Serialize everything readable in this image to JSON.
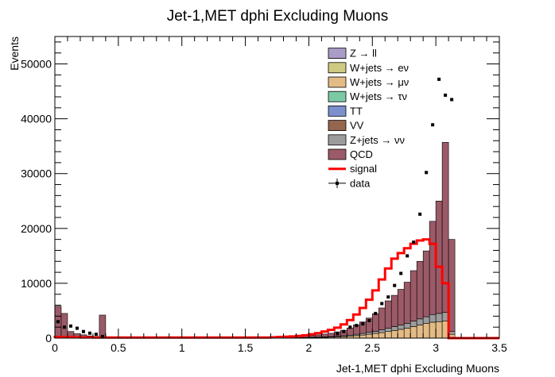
{
  "chart_data": {
    "type": "stacked-histogram",
    "title": "Jet-1,MET dphi Excluding Muons",
    "xlabel": "Jet-1,MET dphi Excluding Muons",
    "ylabel": "Events",
    "xlim": [
      0,
      3.5
    ],
    "ylim": [
      0,
      55000
    ],
    "grid": false,
    "legend_position": "top-right",
    "x_ticks": [
      "0",
      "0.5",
      "1",
      "1.5",
      "2",
      "2.5",
      "3",
      "3.5"
    ],
    "y_ticks": [
      "0",
      "10000",
      "20000",
      "30000",
      "40000",
      "50000"
    ],
    "bin_width": 0.05,
    "bins_lo": [
      0.0,
      0.05,
      0.1,
      0.15,
      0.2,
      0.25,
      0.3,
      0.35,
      0.4,
      0.45,
      0.5,
      0.55,
      0.6,
      0.65,
      0.7,
      0.75,
      0.8,
      0.85,
      0.9,
      0.95,
      1.0,
      1.05,
      1.1,
      1.15,
      1.2,
      1.25,
      1.3,
      1.35,
      1.4,
      1.45,
      1.5,
      1.55,
      1.6,
      1.65,
      1.7,
      1.75,
      1.8,
      1.85,
      1.9,
      1.95,
      2.0,
      2.05,
      2.1,
      2.15,
      2.2,
      2.25,
      2.3,
      2.35,
      2.4,
      2.45,
      2.5,
      2.55,
      2.6,
      2.65,
      2.7,
      2.75,
      2.8,
      2.85,
      2.9,
      2.95,
      3.0,
      3.05,
      3.1
    ],
    "stack": [
      {
        "name": "Z → ll",
        "color": "#a99cc6",
        "values": [
          0,
          0,
          0,
          0,
          0,
          0,
          0,
          0,
          0,
          0,
          0,
          0,
          0,
          0,
          0,
          0,
          0,
          0,
          0,
          0,
          0,
          0,
          0,
          0,
          0,
          0,
          0,
          0,
          0,
          0,
          0,
          0,
          0,
          0,
          0,
          0,
          0,
          0,
          0,
          0,
          0,
          0,
          0,
          0,
          0,
          0,
          0,
          0,
          0,
          0,
          0,
          0,
          0,
          0,
          0,
          0,
          0,
          0,
          0,
          0,
          0,
          0,
          0
        ]
      },
      {
        "name": "W+jets → eν",
        "color": "#cfca82",
        "values": [
          0,
          0,
          0,
          0,
          0,
          0,
          0,
          0,
          0,
          0,
          0,
          0,
          0,
          0,
          0,
          0,
          0,
          0,
          0,
          0,
          0,
          0,
          0,
          0,
          0,
          0,
          0,
          0,
          0,
          0,
          0,
          0,
          0,
          0,
          0,
          0,
          0,
          0,
          0,
          0,
          0,
          0,
          0,
          0,
          0,
          0,
          0,
          0,
          0,
          0,
          0,
          0,
          0,
          0,
          0,
          0,
          0,
          0,
          0,
          0,
          0,
          0,
          0
        ]
      },
      {
        "name": "W+jets → μν",
        "color": "#e3bb85",
        "values": [
          0,
          0,
          0,
          0,
          0,
          0,
          0,
          0,
          0,
          0,
          0,
          0,
          0,
          0,
          0,
          0,
          0,
          0,
          0,
          0,
          0,
          0,
          0,
          0,
          0,
          0,
          0,
          0,
          0,
          0,
          0,
          0,
          0,
          0,
          20,
          30,
          40,
          50,
          60,
          80,
          100,
          120,
          150,
          180,
          220,
          280,
          350,
          450,
          550,
          700,
          850,
          1000,
          1200,
          1400,
          1600,
          1800,
          2100,
          2400,
          2700,
          2900,
          3000,
          3100,
          700
        ]
      },
      {
        "name": "W+jets → τν",
        "color": "#7cc9a5",
        "values": [
          0,
          0,
          0,
          0,
          0,
          0,
          0,
          0,
          0,
          0,
          0,
          0,
          0,
          0,
          0,
          0,
          0,
          0,
          0,
          0,
          0,
          0,
          0,
          0,
          0,
          0,
          0,
          0,
          0,
          0,
          0,
          0,
          0,
          0,
          0,
          0,
          0,
          0,
          0,
          0,
          0,
          0,
          0,
          0,
          0,
          0,
          0,
          0,
          0,
          0,
          0,
          0,
          0,
          0,
          0,
          0,
          0,
          0,
          0,
          0,
          0,
          0,
          0
        ]
      },
      {
        "name": "TT",
        "color": "#7b90cd",
        "values": [
          0,
          0,
          0,
          0,
          0,
          0,
          0,
          0,
          0,
          0,
          0,
          0,
          0,
          0,
          0,
          0,
          0,
          0,
          0,
          0,
          0,
          0,
          0,
          0,
          0,
          0,
          0,
          0,
          0,
          0,
          0,
          0,
          0,
          0,
          0,
          0,
          0,
          0,
          0,
          0,
          0,
          0,
          0,
          0,
          0,
          0,
          0,
          0,
          0,
          0,
          0,
          0,
          0,
          0,
          0,
          0,
          0,
          0,
          0,
          0,
          0,
          0,
          0
        ]
      },
      {
        "name": "VV",
        "color": "#94664e",
        "values": [
          0,
          0,
          0,
          0,
          0,
          0,
          0,
          0,
          0,
          0,
          0,
          0,
          0,
          0,
          0,
          0,
          0,
          0,
          0,
          0,
          0,
          0,
          0,
          0,
          0,
          0,
          0,
          0,
          0,
          0,
          0,
          0,
          0,
          0,
          0,
          0,
          0,
          0,
          0,
          0,
          0,
          0,
          0,
          0,
          0,
          0,
          0,
          0,
          0,
          0,
          0,
          0,
          0,
          0,
          0,
          0,
          0,
          0,
          0,
          0,
          0,
          0,
          0
        ]
      },
      {
        "name": "Z+jets → νν",
        "color": "#9c9c9c",
        "values": [
          0,
          0,
          0,
          0,
          0,
          0,
          0,
          0,
          0,
          0,
          0,
          0,
          0,
          0,
          0,
          0,
          0,
          0,
          0,
          0,
          0,
          0,
          0,
          0,
          0,
          0,
          0,
          0,
          0,
          0,
          0,
          0,
          0,
          0,
          10,
          15,
          20,
          25,
          30,
          40,
          50,
          60,
          80,
          100,
          120,
          150,
          200,
          250,
          300,
          350,
          400,
          500,
          600,
          700,
          800,
          900,
          1000,
          1100,
          1200,
          1400,
          1500,
          1600,
          500
        ]
      },
      {
        "name": "QCD",
        "color": "#9b5a67",
        "values": [
          5800,
          4500,
          1200,
          800,
          600,
          400,
          300,
          4200,
          200,
          150,
          150,
          100,
          100,
          100,
          100,
          100,
          100,
          100,
          100,
          100,
          100,
          100,
          100,
          100,
          100,
          100,
          100,
          100,
          100,
          100,
          100,
          100,
          100,
          100,
          100,
          100,
          150,
          200,
          200,
          250,
          300,
          400,
          500,
          600,
          800,
          1000,
          1300,
          1700,
          2100,
          2600,
          3200,
          4000,
          5000,
          5700,
          6500,
          7500,
          9200,
          10500,
          12000,
          17000,
          20500,
          31000,
          16800
        ]
      }
    ],
    "signal": {
      "name": "signal",
      "color": "#ff0000",
      "values": [
        200,
        180,
        160,
        140,
        130,
        120,
        110,
        100,
        100,
        100,
        100,
        100,
        100,
        100,
        100,
        100,
        100,
        100,
        100,
        100,
        100,
        100,
        100,
        100,
        100,
        100,
        100,
        100,
        100,
        100,
        100,
        100,
        100,
        100,
        150,
        200,
        250,
        300,
        400,
        500,
        700,
        900,
        1200,
        1500,
        1900,
        2500,
        3300,
        4300,
        5500,
        7000,
        8700,
        10700,
        12700,
        14500,
        15500,
        16400,
        17200,
        17800,
        18000,
        17200,
        13000,
        10000,
        0
      ]
    },
    "data": {
      "name": "data",
      "color": "#000000",
      "x": [
        0.025,
        0.075,
        0.125,
        0.175,
        0.225,
        0.275,
        0.325,
        0.375,
        2.225,
        2.275,
        2.325,
        2.375,
        2.425,
        2.475,
        2.525,
        2.575,
        2.625,
        2.675,
        2.725,
        2.775,
        2.825,
        2.875,
        2.925,
        2.975,
        3.025,
        3.075,
        3.125
      ],
      "y": [
        3000,
        2000,
        2200,
        1800,
        1200,
        900,
        700,
        300,
        800,
        1200,
        2000,
        2300,
        2600,
        3200,
        4500,
        6300,
        7500,
        9600,
        11800,
        15000,
        17500,
        22600,
        30200,
        38900,
        47200,
        44300,
        43500
      ]
    }
  }
}
